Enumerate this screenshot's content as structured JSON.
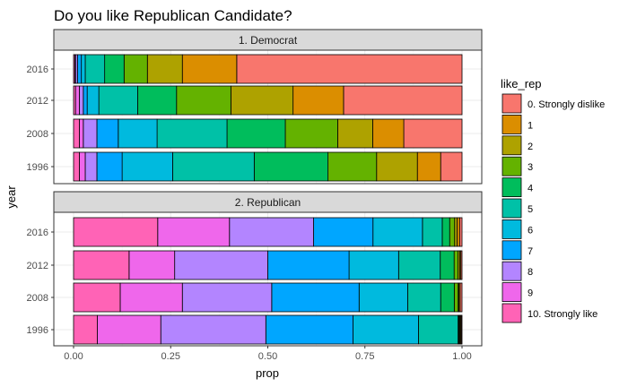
{
  "chart_data": {
    "type": "bar",
    "orientation": "horizontal",
    "stacked": true,
    "title": "Do you like Republican Candidate?",
    "xlabel": "prop",
    "ylabel": "year",
    "xlim": [
      0,
      1
    ],
    "x_ticks": [
      "0.00",
      "0.25",
      "0.50",
      "0.75",
      "1.00"
    ],
    "x_tick_values": [
      0,
      0.25,
      0.5,
      0.75,
      1.0
    ],
    "categories": [
      "2016",
      "2012",
      "2008",
      "1996"
    ],
    "grid": true,
    "legend": {
      "title": "like_rep",
      "position": "right",
      "labels": [
        "0. Strongly dislike",
        "1",
        "2",
        "3",
        "4",
        "5",
        "6",
        "7",
        "8",
        "9",
        "10. Strongly like"
      ],
      "colors": [
        "#F8766D",
        "#DB8E00",
        "#AEA200",
        "#64B200",
        "#00BD5C",
        "#00C1A7",
        "#00BADE",
        "#00A6FF",
        "#B385FF",
        "#EF67EB",
        "#FF63B6"
      ]
    },
    "facets": [
      {
        "label": "1. Democrat",
        "rows": [
          {
            "year": "2016",
            "values": [
              0.58,
              0.14,
              0.09,
              0.06,
              0.05,
              0.05,
              0.01,
              0.01,
              0.005,
              0.002,
              0.003
            ]
          },
          {
            "year": "2012",
            "values": [
              0.305,
              0.13,
              0.16,
              0.14,
              0.1,
              0.1,
              0.03,
              0.01,
              0.01,
              0.01,
              0.005
            ]
          },
          {
            "year": "2008",
            "values": [
              0.15,
              0.08,
              0.09,
              0.135,
              0.15,
              0.18,
              0.1,
              0.055,
              0.035,
              0.01,
              0.015
            ]
          },
          {
            "year": "1996",
            "values": [
              0.055,
              0.06,
              0.105,
              0.125,
              0.19,
              0.21,
              0.13,
              0.065,
              0.03,
              0.015,
              0.015
            ]
          }
        ]
      },
      {
        "label": "2. Republican",
        "rows": [
          {
            "year": "2016",
            "values": [
              0.005,
              0.005,
              0.005,
              0.01,
              0.015,
              0.04,
              0.1,
              0.12,
              0.17,
              0.145,
              0.17
            ]
          },
          {
            "year": "2012",
            "values": [
              0.003,
              0.003,
              0.004,
              0.01,
              0.035,
              0.105,
              0.125,
              0.205,
              0.235,
              0.115,
              0.14
            ]
          },
          {
            "year": "2008",
            "values": [
              0.005,
              0.003,
              0.002,
              0.01,
              0.035,
              0.085,
              0.125,
              0.225,
              0.23,
              0.16,
              0.12
            ]
          },
          {
            "year": "1996",
            "values": [
              0.002,
              0.002,
              0.002,
              0.002,
              0.002,
              0.1,
              0.165,
              0.22,
              0.265,
              0.16,
              0.06
            ]
          }
        ]
      }
    ]
  }
}
